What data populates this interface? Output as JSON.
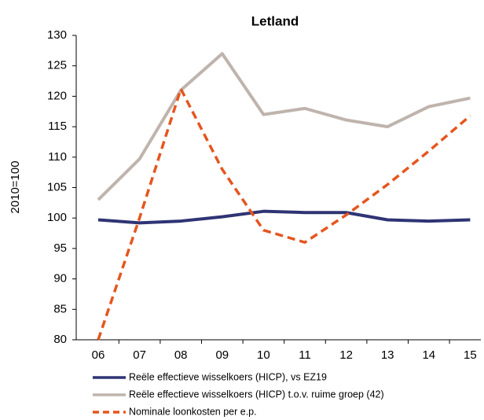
{
  "chart_data": {
    "type": "line",
    "title": "Letland",
    "y_label": "2010=100",
    "categories": [
      "06",
      "07",
      "08",
      "09",
      "10",
      "11",
      "12",
      "13",
      "14",
      "15"
    ],
    "ylim": [
      80,
      130
    ],
    "yticks": [
      80,
      85,
      90,
      95,
      100,
      105,
      110,
      115,
      120,
      125,
      130
    ],
    "grid": false,
    "series": [
      {
        "name": "Reële effectieve wisselkoers (HICP), vs EZ19",
        "color": "#2e3474",
        "dash": false,
        "values": [
          99.7,
          99.2,
          99.5,
          100.2,
          101.1,
          100.9,
          100.9,
          99.7,
          99.5,
          99.7
        ]
      },
      {
        "name": "Reële effectieve wisselkoers (HICP) t.o.v. ruime groep (42)",
        "color": "#bfb4ad",
        "dash": false,
        "values": [
          103,
          109.7,
          121,
          127,
          117,
          118,
          116.1,
          115,
          118.3,
          119.7
        ]
      },
      {
        "name": "Nominale loonkosten per e.p.",
        "color": "#e5561f",
        "dash": true,
        "values": [
          80,
          100,
          121.2,
          108,
          98,
          96,
          100.5,
          105.5,
          111,
          116.8
        ]
      }
    ]
  }
}
